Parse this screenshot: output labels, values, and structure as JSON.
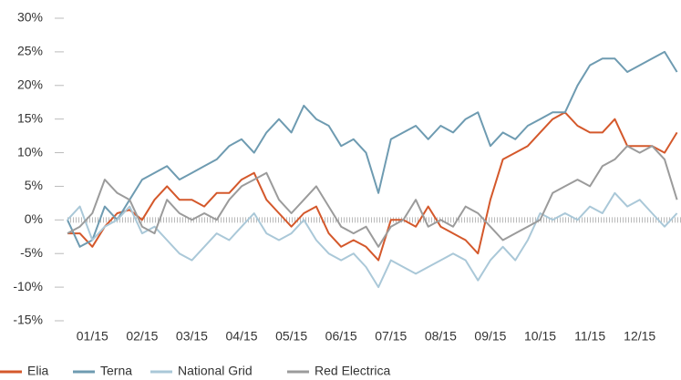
{
  "chart_data": {
    "type": "line",
    "x": [
      0.5,
      0.75,
      1,
      1.25,
      1.5,
      1.75,
      2,
      2.25,
      2.5,
      2.75,
      3,
      3.25,
      3.5,
      3.75,
      4,
      4.25,
      4.5,
      4.75,
      5,
      5.25,
      5.5,
      5.75,
      6,
      6.25,
      6.5,
      6.75,
      7,
      7.25,
      7.5,
      7.75,
      8,
      8.25,
      8.5,
      8.75,
      9,
      9.25,
      9.5,
      9.75,
      10,
      10.25,
      10.5,
      10.75,
      11,
      11.25,
      11.5,
      11.75,
      12,
      12.25,
      12.5,
      12.75
    ],
    "series": [
      {
        "name": "Elia",
        "color": "#d4582b",
        "values": [
          -2,
          -2,
          -4,
          -1,
          1,
          1.5,
          0,
          3,
          5,
          3,
          3,
          2,
          4,
          4,
          6,
          7,
          3,
          1,
          -1,
          1,
          2,
          -2,
          -4,
          -3,
          -4,
          -6,
          0,
          0,
          -1,
          2,
          -1,
          -2,
          -3,
          -5,
          3,
          9,
          10,
          11,
          13,
          15,
          16,
          14,
          13,
          13,
          15,
          11,
          11,
          11,
          10,
          13
        ]
      },
      {
        "name": "Terna",
        "color": "#6e9bb1",
        "values": [
          0,
          -4,
          -3,
          2,
          0,
          3,
          6,
          7,
          8,
          6,
          7,
          8,
          9,
          11,
          12,
          10,
          13,
          15,
          13,
          17,
          15,
          14,
          11,
          12,
          10,
          4,
          12,
          13,
          14,
          12,
          14,
          13,
          15,
          16,
          11,
          13,
          12,
          14,
          15,
          16,
          16,
          20,
          23,
          24,
          24,
          22,
          23,
          24,
          25,
          22
        ]
      },
      {
        "name": "National Grid",
        "color": "#aac8d8",
        "values": [
          0,
          2,
          -3,
          -1,
          0,
          2,
          -2,
          -1,
          -3,
          -5,
          -6,
          -4,
          -2,
          -3,
          -1,
          1,
          -2,
          -3,
          -2,
          0,
          -3,
          -5,
          -6,
          -5,
          -7,
          -10,
          -6,
          -7,
          -8,
          -7,
          -6,
          -5,
          -6,
          -9,
          -6,
          -4,
          -6,
          -3,
          1,
          0,
          1,
          0,
          2,
          1,
          4,
          2,
          3,
          1,
          -1,
          1
        ]
      },
      {
        "name": "Red Electrica",
        "color": "#9b9b9b",
        "values": [
          -2,
          -1,
          1,
          6,
          4,
          3,
          -1,
          -2,
          3,
          1,
          0,
          1,
          0,
          3,
          5,
          6,
          7,
          3,
          1,
          3,
          5,
          2,
          -1,
          -2,
          -1,
          -4,
          -1,
          0,
          3,
          -1,
          0,
          -1,
          2,
          1,
          -1,
          -3,
          -2,
          -1,
          0,
          4,
          5,
          6,
          5,
          8,
          9,
          11,
          10,
          11,
          9,
          3
        ]
      }
    ],
    "xlim": [
      0.5,
      12.83
    ],
    "xticks": [
      {
        "value": 1,
        "label": "01/15"
      },
      {
        "value": 2,
        "label": "02/15"
      },
      {
        "value": 3,
        "label": "03/15"
      },
      {
        "value": 4,
        "label": "04/15"
      },
      {
        "value": 5,
        "label": "05/15"
      },
      {
        "value": 6,
        "label": "06/15"
      },
      {
        "value": 7,
        "label": "07/15"
      },
      {
        "value": 8,
        "label": "08/15"
      },
      {
        "value": 9,
        "label": "09/15"
      },
      {
        "value": 10,
        "label": "10/15"
      },
      {
        "value": 11,
        "label": "11/15"
      },
      {
        "value": 12,
        "label": "12/15"
      }
    ],
    "ylim": [
      -15,
      30
    ],
    "yticks": [
      {
        "value": 30,
        "label": "30%"
      },
      {
        "value": 25,
        "label": "25%"
      },
      {
        "value": 20,
        "label": "20%"
      },
      {
        "value": 15,
        "label": "15%"
      },
      {
        "value": 10,
        "label": "10%"
      },
      {
        "value": 5,
        "label": "5%"
      },
      {
        "value": 0,
        "label": "0%"
      },
      {
        "value": -5,
        "label": "-5%"
      },
      {
        "value": -10,
        "label": "-10%"
      },
      {
        "value": -15,
        "label": "-15%"
      }
    ],
    "legend": "bottom-left"
  }
}
